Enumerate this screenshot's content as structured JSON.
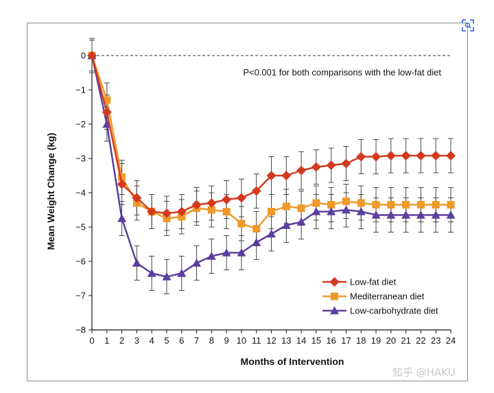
{
  "chart_data": {
    "type": "line",
    "title": "",
    "xlabel": "Months of Intervention",
    "ylabel": "Mean Weight Change (kg)",
    "xlim": [
      0,
      24
    ],
    "ylim": [
      -8,
      0
    ],
    "x_ticks": [
      0,
      1,
      2,
      3,
      4,
      5,
      6,
      7,
      8,
      9,
      10,
      11,
      12,
      13,
      14,
      15,
      16,
      17,
      18,
      19,
      20,
      21,
      22,
      23,
      24
    ],
    "y_ticks": [
      0,
      -1,
      -2,
      -3,
      -4,
      -5,
      -6,
      -7,
      -8
    ],
    "annotation": "P<0.001 for both comparisons with the low-fat diet",
    "legend_position": "bottom-right",
    "baseline": 0,
    "series": [
      {
        "name": "Low-fat diet",
        "color": "#d23a20",
        "marker": "diamond",
        "x": [
          0,
          1,
          2,
          3,
          4,
          5,
          6,
          7,
          8,
          9,
          10,
          11,
          12,
          13,
          14,
          15,
          16,
          17,
          18,
          19,
          20,
          21,
          22,
          23,
          24
        ],
        "values": [
          0,
          -1.65,
          -3.75,
          -4.15,
          -4.55,
          -4.6,
          -4.55,
          -4.35,
          -4.3,
          -4.2,
          -4.15,
          -3.95,
          -3.5,
          -3.5,
          -3.35,
          -3.25,
          -3.2,
          -3.15,
          -2.95,
          -2.95,
          -2.92,
          -2.92,
          -2.92,
          -2.92,
          -2.92
        ],
        "errors": [
          0.5,
          0.5,
          0.6,
          0.5,
          0.5,
          0.5,
          0.5,
          0.5,
          0.5,
          0.55,
          0.55,
          0.5,
          0.55,
          0.55,
          0.55,
          0.5,
          0.5,
          0.5,
          0.5,
          0.5,
          0.5,
          0.5,
          0.5,
          0.5,
          0.5
        ]
      },
      {
        "name": "Mediterranean diet",
        "color": "#ee9a2a",
        "marker": "square",
        "x": [
          0,
          1,
          2,
          3,
          4,
          5,
          6,
          7,
          8,
          9,
          10,
          11,
          12,
          13,
          14,
          15,
          16,
          17,
          18,
          19,
          20,
          21,
          22,
          23,
          24
        ],
        "values": [
          0,
          -1.3,
          -3.55,
          -4.3,
          -4.55,
          -4.75,
          -4.7,
          -4.45,
          -4.5,
          -4.55,
          -4.9,
          -5.05,
          -4.55,
          -4.4,
          -4.45,
          -4.3,
          -4.35,
          -4.25,
          -4.3,
          -4.35,
          -4.35,
          -4.35,
          -4.35,
          -4.35,
          -4.35
        ],
        "errors": [
          0.45,
          0.5,
          0.5,
          0.5,
          0.5,
          0.5,
          0.5,
          0.5,
          0.5,
          0.5,
          0.5,
          0.5,
          0.5,
          0.5,
          0.5,
          0.5,
          0.5,
          0.5,
          0.5,
          0.5,
          0.5,
          0.5,
          0.5,
          0.5,
          0.5
        ]
      },
      {
        "name": "Low-carbohydrate diet",
        "color": "#5b3f9e",
        "marker": "triangle",
        "x": [
          0,
          1,
          2,
          3,
          4,
          5,
          6,
          7,
          8,
          9,
          10,
          11,
          12,
          13,
          14,
          15,
          16,
          17,
          18,
          19,
          20,
          21,
          22,
          23,
          24
        ],
        "values": [
          0,
          -2.0,
          -4.75,
          -6.05,
          -6.35,
          -6.45,
          -6.35,
          -6.05,
          -5.85,
          -5.75,
          -5.75,
          -5.45,
          -5.2,
          -4.95,
          -4.85,
          -4.55,
          -4.55,
          -4.5,
          -4.55,
          -4.65,
          -4.65,
          -4.65,
          -4.65,
          -4.65,
          -4.65
        ],
        "errors": [
          0.5,
          0.5,
          0.5,
          0.5,
          0.5,
          0.5,
          0.5,
          0.5,
          0.5,
          0.5,
          0.5,
          0.5,
          0.5,
          0.5,
          0.5,
          0.5,
          0.5,
          0.5,
          0.5,
          0.5,
          0.5,
          0.5,
          0.5,
          0.5,
          0.5
        ]
      }
    ]
  },
  "watermark": "知乎 @HAKU",
  "icons": {
    "corner": "scan-icon"
  }
}
